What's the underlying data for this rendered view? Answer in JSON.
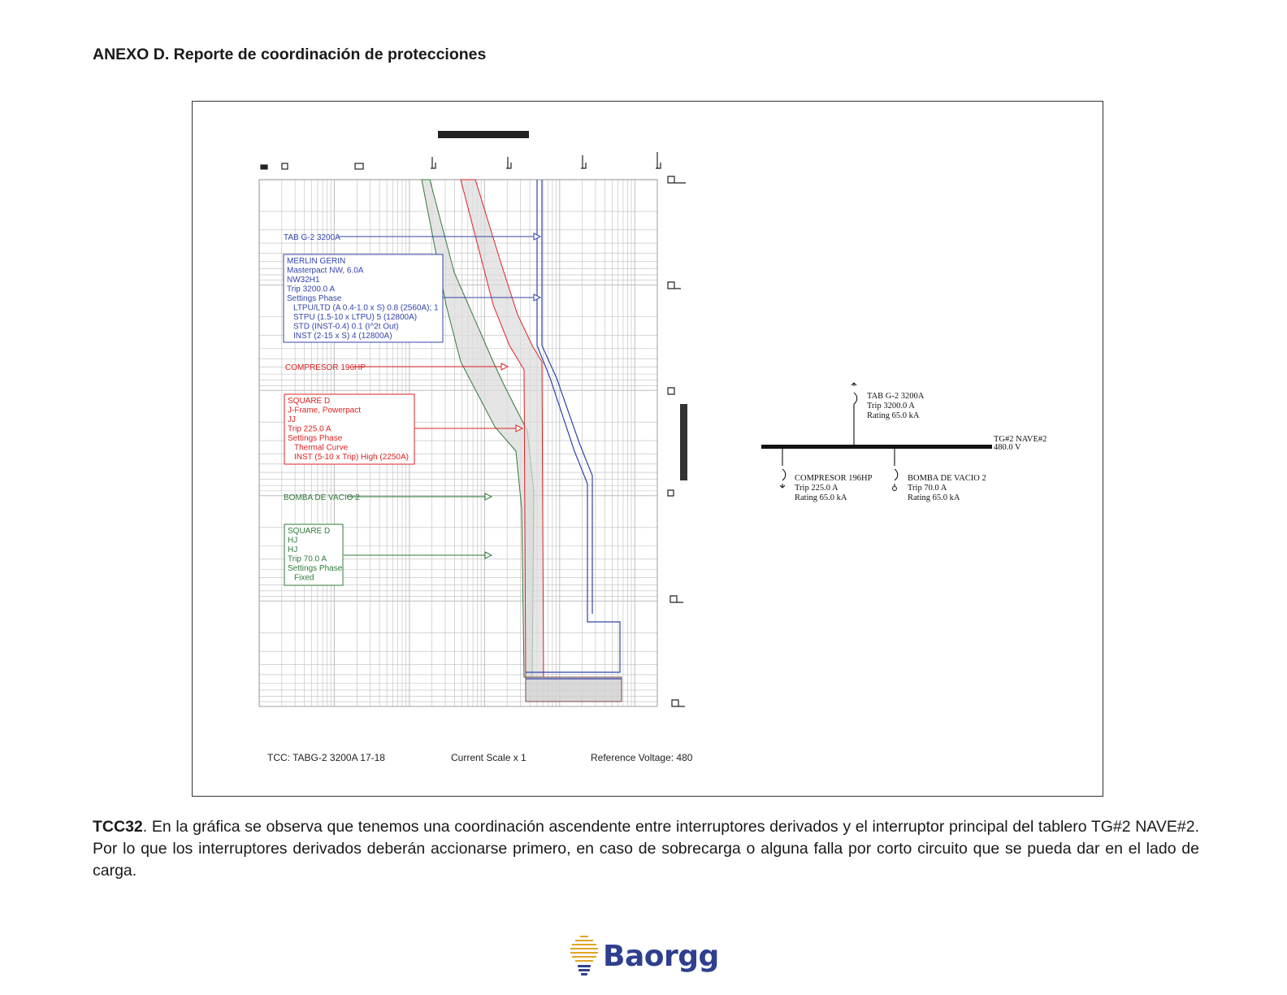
{
  "page": {
    "heading": "ANEXO D. Reporte de coordinación de protecciones"
  },
  "tcc": {
    "labels": {
      "main_arrow": "TAB G-2 3200A",
      "comp_arrow": "COMPRESOR 196HP",
      "bomba_arrow": "BOMBA DE VACIO 2"
    },
    "main_box": [
      "MERLIN GERIN",
      "Masterpact NW, 6.0A",
      "NW32H1",
      "Trip 3200.0 A",
      "Settings Phase",
      "   LTPU/LTD (A 0.4-1.0 x S) 0.8 (2560A); 1",
      "   STPU (1.5-10 x LTPU) 5 (12800A)",
      "   STD (INST-0.4) 0.1 (I^2t Out)",
      "   INST (2-15 x S) 4 (12800A)"
    ],
    "comp_box": [
      "SQUARE D",
      "J-Frame, Powerpact",
      "JJ",
      "Trip 225.0 A",
      "Settings Phase",
      "   Thermal Curve",
      "   INST (5-10 x Trip) High (2250A)"
    ],
    "bomba_box": [
      "SQUARE D",
      "HJ",
      "HJ",
      "Trip 70.0 A",
      "Settings Phase",
      "   Fixed"
    ],
    "footer": {
      "tcc_name": "TCC:  TABG-2 3200A 17-18",
      "scale": "Current Scale  x 1",
      "voltage": "Reference Voltage: 480"
    },
    "colors": {
      "main": "#3344aa",
      "compresor": "#dd2222",
      "bomba": "#2f7a3a",
      "grid": "#bbbbbb"
    }
  },
  "one_line": {
    "main_breaker": [
      "TAB G-2 3200A",
      "Trip 3200.0 A",
      "Rating 65.0 kA"
    ],
    "bus": [
      "TG#2 NAVE#2",
      "480.0 V"
    ],
    "feeder_1": [
      "COMPRESOR 196HP",
      "Trip 225.0 A",
      "Rating 65.0 kA"
    ],
    "feeder_2": [
      "BOMBA DE VACIO 2",
      "Trip 70.0 A",
      "Rating 65.0 kA"
    ]
  },
  "caption": {
    "lead": "TCC32",
    "text": ". En la gráfica se observa que tenemos una coordinación ascendente entre interruptores derivados y el interruptor principal del tablero TG#2 NAVE#2. Por lo que los interruptores derivados deberán accionarse primero, en caso de sobrecarga o alguna falla por corto circuito que se pueda dar en el lado de carga."
  },
  "logo": {
    "text": "Baorgg",
    "icon": "lightbulb-grid-icon"
  }
}
